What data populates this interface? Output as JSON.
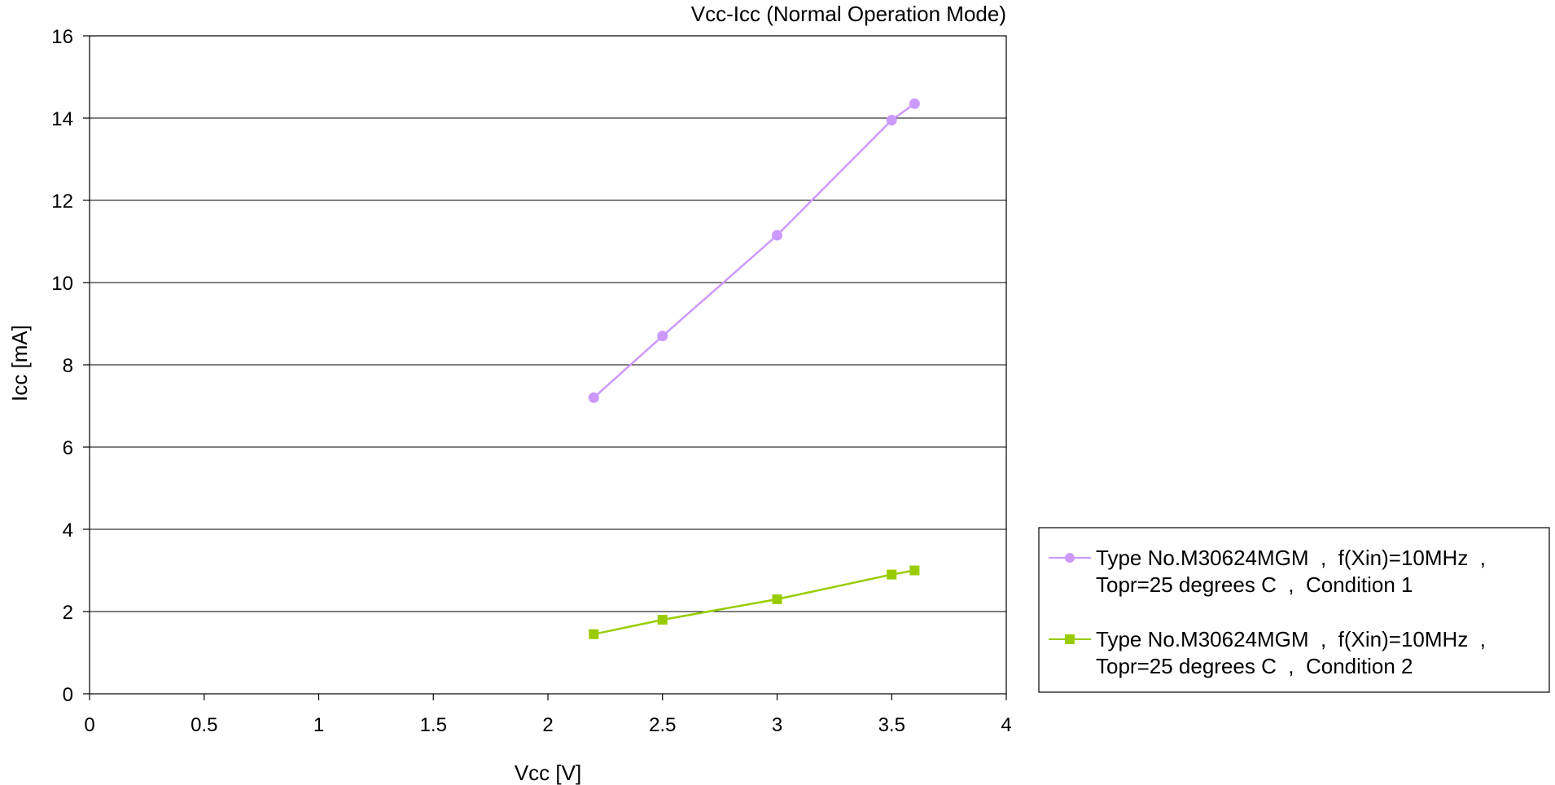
{
  "chart_data": {
    "type": "line",
    "title": "Vcc-Icc (Normal Operation Mode)",
    "xlabel": "Vcc [V]",
    "ylabel": "Icc [mA]",
    "xlim": [
      0,
      4
    ],
    "ylim": [
      0,
      16
    ],
    "x_ticks": [
      "0",
      "0.5",
      "1",
      "1.5",
      "2",
      "2.5",
      "3",
      "3.5",
      "4"
    ],
    "y_ticks": [
      "0",
      "2",
      "4",
      "6",
      "8",
      "10",
      "12",
      "14",
      "16"
    ],
    "grid": true,
    "legend_position": "right",
    "series": [
      {
        "name": "Type No.M30624MGM  ,  f(Xin)=10MHz  ,",
        "name_line2": "Topr=25 degrees C  ,  Condition 1",
        "color": "#cc99ff",
        "marker": "circle",
        "x": [
          2.2,
          2.5,
          3.0,
          3.5,
          3.6
        ],
        "y": [
          7.2,
          8.7,
          11.15,
          13.95,
          14.35
        ]
      },
      {
        "name": "Type No.M30624MGM  ,  f(Xin)=10MHz  ,",
        "name_line2": "Topr=25 degrees C  ,  Condition 2",
        "color": "#99cc00",
        "marker": "square",
        "x": [
          2.2,
          2.5,
          3.0,
          3.5,
          3.6
        ],
        "y": [
          1.45,
          1.8,
          2.3,
          2.9,
          3.0
        ]
      }
    ]
  }
}
